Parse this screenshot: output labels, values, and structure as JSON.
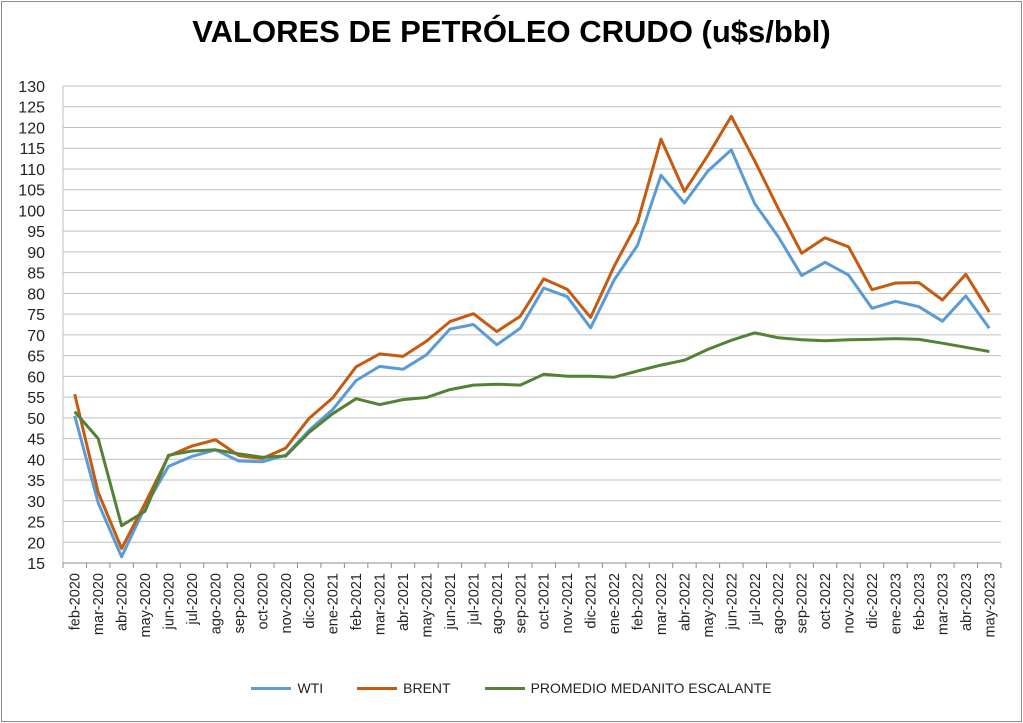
{
  "chart_data": {
    "type": "line",
    "title": "VALORES DE PETRÓLEO CRUDO (u$s/bbl)",
    "xlabel": "",
    "ylabel": "",
    "ylim": [
      15,
      130
    ],
    "ytick_step": 5,
    "grid": true,
    "legend_placement": "bottom",
    "categories": [
      "feb-2020",
      "mar-2020",
      "abr-2020",
      "may-2020",
      "jun-2020",
      "jul-2020",
      "ago-2020",
      "sep-2020",
      "oct-2020",
      "nov-2020",
      "dic-2020",
      "ene-2021",
      "feb-2021",
      "mar-2021",
      "abr-2021",
      "may-2021",
      "jun-2021",
      "jul-2021",
      "ago-2021",
      "sep-2021",
      "oct-2021",
      "nov-2021",
      "dic-2021",
      "ene-2022",
      "feb-2022",
      "mar-2022",
      "abr-2022",
      "may-2022",
      "jun-2022",
      "jul-2022",
      "ago-2022",
      "sep-2022",
      "oct-2022",
      "nov-2022",
      "dic-2022",
      "ene-2023",
      "feb-2023",
      "mar-2023",
      "abr-2023",
      "may-2023"
    ],
    "series": [
      {
        "name": "WTI",
        "color": "#5b9bd5",
        "values": [
          50.5,
          29.5,
          16.5,
          28.5,
          38.3,
          40.7,
          42.3,
          39.6,
          39.4,
          41,
          47,
          52,
          59,
          62.4,
          61.7,
          65.2,
          71.4,
          72.5,
          67.6,
          71.6,
          81.3,
          79.2,
          71.7,
          83.2,
          91.6,
          108.5,
          101.8,
          109.5,
          114.6,
          101.6,
          93.7,
          84.3,
          87.5,
          84.4,
          76.4,
          78.1,
          76.8,
          73.3,
          79.4,
          71.6
        ]
      },
      {
        "name": "BRENT",
        "color": "#c55a11",
        "values": [
          55.7,
          32,
          18.5,
          29.4,
          40.8,
          43.2,
          44.7,
          40.9,
          40.2,
          42.7,
          49.9,
          54.8,
          62.3,
          65.4,
          64.8,
          68.5,
          73.2,
          75.1,
          70.8,
          74.5,
          83.5,
          81,
          74.2,
          86.5,
          97.1,
          117.2,
          104.6,
          113.3,
          122.7,
          111.9,
          100.5,
          89.7,
          93.4,
          91.2,
          80.9,
          82.5,
          82.6,
          78.4,
          84.6,
          75.5
        ]
      },
      {
        "name": "PROMEDIO MEDANITO ESCALANTE",
        "color": "#548235",
        "values": [
          51.5,
          45,
          24,
          27.5,
          41,
          42,
          42.3,
          41.3,
          40.5,
          40.8,
          46.5,
          51,
          54.6,
          53.2,
          54.4,
          54.9,
          56.8,
          57.9,
          58.1,
          57.9,
          60.5,
          60,
          60,
          59.8,
          61.3,
          62.7,
          63.9,
          66.5,
          68.7,
          70.5,
          69.3,
          68.8,
          68.6,
          68.8,
          68.9,
          69.1,
          68.9,
          68,
          67,
          66
        ]
      }
    ]
  }
}
